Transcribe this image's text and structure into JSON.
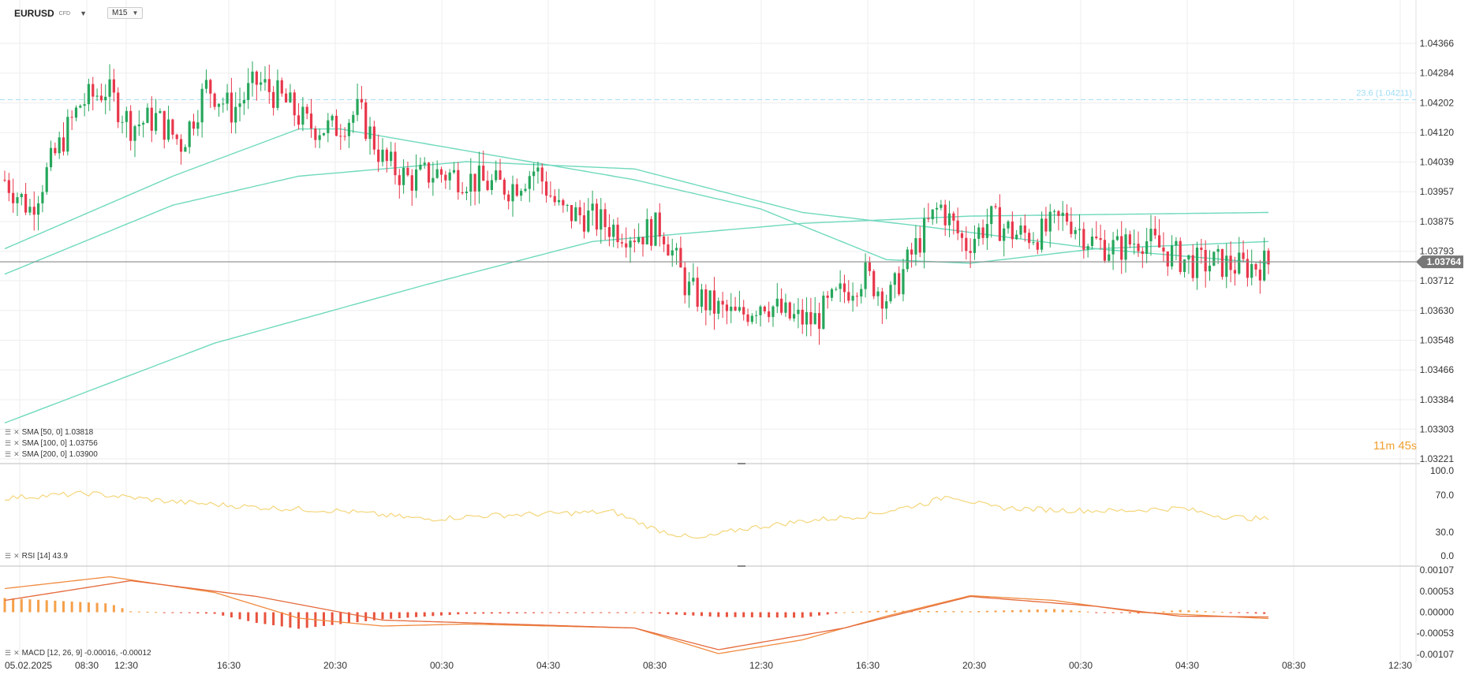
{
  "header": {
    "symbol": "EURUSD",
    "symbol_type": "CFD",
    "timeframe": "M15"
  },
  "timer": {
    "minutes": "11",
    "minutes_unit": "m",
    "seconds": "45",
    "seconds_unit": "s"
  },
  "legend": {
    "sma50": "SMA [50, 0] 1.03818",
    "sma100": "SMA [100, 0] 1.03756",
    "sma200": "SMA [200, 0] 1.03900",
    "rsi": "RSI [14] 43.9",
    "macd": "MACD [12, 26, 9] -0.00016, -0.00012"
  },
  "colors": {
    "bull": "#26a65b",
    "bear": "#e8374b",
    "ma": "#6fd9bd",
    "rsi": "#f4d67a",
    "macd": "#f08a3e",
    "signal": "#e56a3c",
    "fib": "#9fdcf5",
    "grid": "#eeeeee"
  },
  "chart_data": [
    {
      "type": "candlestick",
      "title": "EURUSD CFD M15",
      "y_ticks": [
        "1.04366",
        "1.04284",
        "1.04202",
        "1.04120",
        "1.04039",
        "1.03957",
        "1.03875",
        "1.03793",
        "1.03712",
        "1.03630",
        "1.03548",
        "1.03466",
        "1.03384",
        "1.03303",
        "1.03221"
      ],
      "ylim": [
        1.03221,
        1.04366
      ],
      "x_ticks": [
        "05.02.2025",
        "08:30",
        "12:30",
        "16:30",
        "20:30",
        "00:30",
        "04:30",
        "08:30",
        "12:30",
        "16:30",
        "20:30",
        "00:30",
        "04:30",
        "08:30",
        "12:30"
      ],
      "current_price": "1.03764",
      "fib_level": {
        "label": "23.6 (1.04211)",
        "value": 1.04211
      },
      "keypoints_close": [
        1.0399,
        1.0391,
        1.0406,
        1.042,
        1.0424,
        1.0414,
        1.0416,
        1.0409,
        1.0425,
        1.0418,
        1.0426,
        1.0421,
        1.0414,
        1.0413,
        1.0418,
        1.0404,
        1.0399,
        1.0401,
        1.04,
        1.0398,
        1.0397,
        1.0402,
        1.039,
        1.0389,
        1.0386,
        1.0384,
        1.0386,
        1.0369,
        1.0364,
        1.0361,
        1.0366,
        1.0361,
        1.036,
        1.0367,
        1.0373,
        1.0366,
        1.038,
        1.0392,
        1.0381,
        1.0388,
        1.0384,
        1.0384,
        1.0389,
        1.0382,
        1.038,
        1.0383,
        1.0379,
        1.0376,
        1.0376,
        1.0375,
        1.0376
      ],
      "candles_count": 302,
      "series": [
        {
          "name": "SMA [50, 0]",
          "last": 1.03818,
          "keypoints": [
            [
              0,
              1.038
            ],
            [
              40,
              1.04
            ],
            [
              70,
              1.0413
            ],
            [
              80,
              1.0413
            ],
            [
              120,
              1.0405
            ],
            [
              150,
              1.0399
            ],
            [
              180,
              1.0391
            ],
            [
              210,
              1.0377
            ],
            [
              230,
              1.0376
            ],
            [
              260,
              1.038
            ],
            [
              301,
              1.0382
            ]
          ]
        },
        {
          "name": "SMA [100, 0]",
          "last": 1.03756,
          "keypoints": [
            [
              0,
              1.0373
            ],
            [
              40,
              1.0392
            ],
            [
              70,
              1.04
            ],
            [
              110,
              1.0404
            ],
            [
              150,
              1.0402
            ],
            [
              190,
              1.039
            ],
            [
              220,
              1.0386
            ],
            [
              260,
              1.038
            ],
            [
              301,
              1.0376
            ]
          ]
        },
        {
          "name": "SMA [200, 0]",
          "last": 1.039,
          "keypoints": [
            [
              0,
              1.0332
            ],
            [
              50,
              1.0354
            ],
            [
              100,
              1.037
            ],
            [
              140,
              1.0382
            ],
            [
              190,
              1.0387
            ],
            [
              230,
              1.0389
            ],
            [
              301,
              1.039
            ]
          ]
        }
      ]
    },
    {
      "type": "line",
      "name": "RSI [14]",
      "y_ticks": [
        "100.0",
        "70.0",
        "30.0",
        "0.0"
      ],
      "ylim": [
        0,
        100
      ],
      "last": 43.9,
      "keypoints": [
        [
          0,
          67
        ],
        [
          20,
          72
        ],
        [
          40,
          63
        ],
        [
          60,
          57
        ],
        [
          80,
          53
        ],
        [
          100,
          44
        ],
        [
          115,
          48
        ],
        [
          130,
          50
        ],
        [
          145,
          52
        ],
        [
          155,
          33
        ],
        [
          165,
          22
        ],
        [
          175,
          33
        ],
        [
          190,
          42
        ],
        [
          205,
          48
        ],
        [
          220,
          62
        ],
        [
          225,
          70
        ],
        [
          235,
          57
        ],
        [
          250,
          54
        ],
        [
          265,
          53
        ],
        [
          280,
          56
        ],
        [
          290,
          47
        ],
        [
          301,
          44
        ]
      ]
    },
    {
      "type": "line",
      "name": "MACD [12, 26, 9]",
      "y_ticks": [
        "0.00107",
        "0.00053",
        "0.00000",
        "-0.00053",
        "-0.00107"
      ],
      "ylim": [
        -0.00107,
        0.00107
      ],
      "last_macd": -0.00016,
      "last_signal": -0.00012,
      "macd_keypoints": [
        [
          0,
          0.0006
        ],
        [
          25,
          0.0009
        ],
        [
          50,
          0.0005
        ],
        [
          70,
          -0.00015
        ],
        [
          90,
          -0.00035
        ],
        [
          110,
          -0.0003
        ],
        [
          150,
          -0.0004
        ],
        [
          170,
          -0.00105
        ],
        [
          190,
          -0.0007
        ],
        [
          210,
          -0.0001
        ],
        [
          230,
          0.00042
        ],
        [
          250,
          0.0003
        ],
        [
          270,
          0.0
        ],
        [
          301,
          -0.00016
        ]
      ],
      "signal_keypoints": [
        [
          0,
          0.0003
        ],
        [
          30,
          0.0008
        ],
        [
          60,
          0.0004
        ],
        [
          90,
          -0.0002
        ],
        [
          120,
          -0.0003
        ],
        [
          150,
          -0.0004
        ],
        [
          170,
          -0.00095
        ],
        [
          200,
          -0.0004
        ],
        [
          230,
          0.0004
        ],
        [
          260,
          0.00015
        ],
        [
          280,
          -0.0001
        ],
        [
          301,
          -0.00012
        ]
      ]
    }
  ]
}
